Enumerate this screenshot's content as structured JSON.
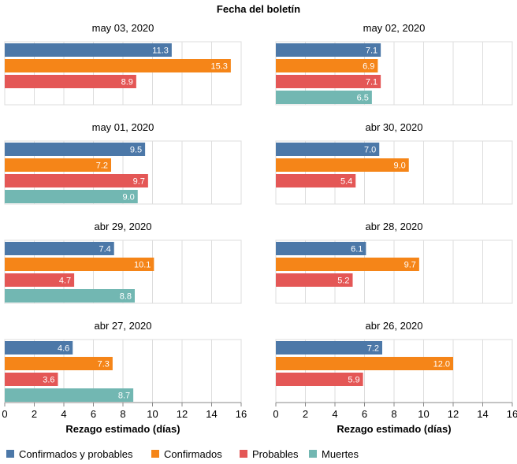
{
  "chart_data": {
    "type": "bar",
    "orientation": "horizontal",
    "title": "Fecha del boletín",
    "xlabel": "Rezago estimado (días)",
    "xlim": [
      0,
      16
    ],
    "xticks": [
      "0",
      "2",
      "4",
      "6",
      "8",
      "10",
      "12",
      "14",
      "16"
    ],
    "grid": true,
    "legend_position": "bottom",
    "series": [
      {
        "name": "Confirmados y probables",
        "color": "#4c78a8"
      },
      {
        "name": "Confirmados",
        "color": "#f58518"
      },
      {
        "name": "Probables",
        "color": "#e45756"
      },
      {
        "name": "Muertes",
        "color": "#72b7b2"
      }
    ],
    "panels": [
      {
        "title": "may 03, 2020",
        "values": [
          11.3,
          15.3,
          8.9,
          null
        ],
        "labels": [
          "11.3",
          "15.3",
          "8.9",
          ""
        ]
      },
      {
        "title": "may 02, 2020",
        "values": [
          7.1,
          6.9,
          7.1,
          6.5
        ],
        "labels": [
          "7.1",
          "6.9",
          "7.1",
          "6.5"
        ]
      },
      {
        "title": "may 01, 2020",
        "values": [
          9.5,
          7.2,
          9.7,
          9.0
        ],
        "labels": [
          "9.5",
          "7.2",
          "9.7",
          "9.0"
        ]
      },
      {
        "title": "abr 30, 2020",
        "values": [
          7.0,
          9.0,
          5.4,
          null
        ],
        "labels": [
          "7.0",
          "9.0",
          "5.4",
          ""
        ]
      },
      {
        "title": "abr 29, 2020",
        "values": [
          7.4,
          10.1,
          4.7,
          8.8
        ],
        "labels": [
          "7.4",
          "10.1",
          "4.7",
          "8.8"
        ]
      },
      {
        "title": "abr 28, 2020",
        "values": [
          6.1,
          9.7,
          5.2,
          null
        ],
        "labels": [
          "6.1",
          "9.7",
          "5.2",
          ""
        ]
      },
      {
        "title": "abr 27, 2020",
        "values": [
          4.6,
          7.3,
          3.6,
          8.7
        ],
        "labels": [
          "4.6",
          "7.3",
          "3.6",
          "8.7"
        ]
      },
      {
        "title": "abr 26, 2020",
        "values": [
          7.2,
          12.0,
          5.9,
          null
        ],
        "labels": [
          "7.2",
          "12.0",
          "5.9",
          ""
        ]
      }
    ]
  }
}
